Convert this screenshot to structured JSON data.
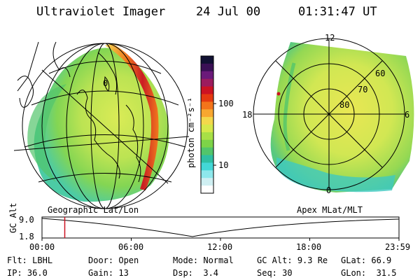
{
  "header": {
    "title": "Ultraviolet Imager",
    "date": "24 Jul 00",
    "time": "01:31:47 UT"
  },
  "colorbar": {
    "unit_label": "photon cm⁻²s⁻¹",
    "ticks": [
      "100",
      "10"
    ],
    "colors": [
      "#111133",
      "#3a1055",
      "#6b1a7a",
      "#9c1c5e",
      "#cc1322",
      "#e53910",
      "#f4741a",
      "#f8a730",
      "#f3d84b",
      "#d6e84a",
      "#a8e046",
      "#7dd348",
      "#52c56b",
      "#2fbfa3",
      "#43d7d6",
      "#8ee8ec",
      "#cfeff2",
      "#ffffff"
    ]
  },
  "left_panel": {
    "label": "Geographic Lat/Lon",
    "tick_0": "0"
  },
  "right_panel": {
    "label": "Apex MLat/MLT",
    "mlt_12": "12",
    "mlt_18": "18",
    "mlt_6": "6",
    "mlt_0": "0",
    "lat_60": "60",
    "lat_70": "70",
    "lat_80": "80"
  },
  "timeline": {
    "ylabel": "GC Alt",
    "ymax": "9.0",
    "ymin": "1.8",
    "ticks": [
      "00:00",
      "06:00",
      "12:00",
      "18:00",
      "23:59"
    ],
    "current_time_hours": 1.53
  },
  "info": {
    "flt_label": "Flt:",
    "flt_value": "LBHL",
    "ip_label": "IP:",
    "ip_value": "36.0",
    "door_label": "Door:",
    "door_value": "Open",
    "gain_label": "Gain:",
    "gain_value": "13",
    "mode_label": "Mode:",
    "mode_value": "Normal",
    "dsp_label": "Dsp:",
    "dsp_value": "3.4",
    "gcalt_label": "GC Alt:",
    "gcalt_value": "9.3 Re",
    "seq_label": "Seq:",
    "seq_value": "30",
    "glat_label": "GLat:",
    "glat_value": "66.9",
    "glon_label": "GLon:",
    "glon_value": "31.5"
  }
}
